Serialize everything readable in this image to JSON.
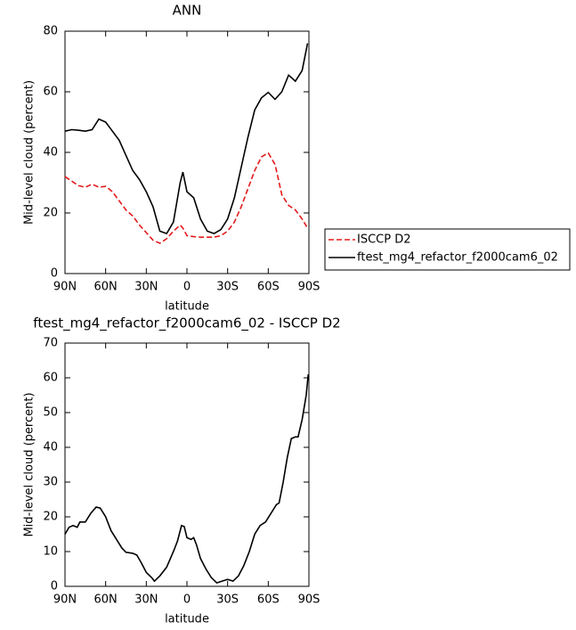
{
  "chart_data": [
    {
      "type": "line",
      "title": "ANN",
      "xlabel": "latitude",
      "ylabel": "Mid-level cloud (percent)",
      "x": [
        90,
        85,
        80,
        75,
        70,
        65,
        60,
        55,
        50,
        45,
        40,
        35,
        30,
        25,
        20,
        15,
        10,
        5,
        3,
        0,
        -5,
        -10,
        -15,
        -20,
        -25,
        -30,
        -35,
        -40,
        -45,
        -50,
        -55,
        -60,
        -65,
        -70,
        -75,
        -80,
        -85,
        -89
      ],
      "series": [
        {
          "name": "ISCCP D2",
          "color": "#e41a1c",
          "dash": true,
          "values": [
            32,
            30.5,
            29,
            28.5,
            29.5,
            28.5,
            28.8,
            27,
            24,
            21,
            19,
            16,
            13.5,
            11,
            10,
            11.5,
            14,
            16,
            15,
            12.5,
            12.2,
            12,
            12,
            12,
            12.5,
            14,
            17,
            22,
            28,
            34,
            38.5,
            39.8,
            36,
            26,
            22.5,
            21,
            18,
            15
          ]
        },
        {
          "name": "ftest_mg4_refactor_f2000cam6_02",
          "color": "#000000",
          "dash": false,
          "values": [
            47,
            47.5,
            47.3,
            47,
            47.5,
            51,
            50,
            47,
            44,
            39,
            34,
            31,
            27,
            22,
            14,
            13.2,
            17,
            30,
            33.5,
            27,
            25,
            18,
            14,
            13.2,
            14.5,
            18,
            25,
            35,
            45,
            54,
            58,
            59.8,
            57.5,
            60,
            65.5,
            63.5,
            67,
            76
          ]
        }
      ],
      "xlim": [
        90,
        -90
      ],
      "xticks": [
        {
          "value": 90,
          "label": "90N"
        },
        {
          "value": 60,
          "label": "60N"
        },
        {
          "value": 30,
          "label": "30N"
        },
        0,
        {
          "value": -30,
          "label": "30S"
        },
        {
          "value": -60,
          "label": "60S"
        },
        {
          "value": -90,
          "label": "90S"
        }
      ],
      "ylim": [
        0,
        80
      ],
      "yticks": [
        0,
        20,
        40,
        60,
        80
      ],
      "legend": "right"
    },
    {
      "type": "line",
      "title": "ftest_mg4_refactor_f2000cam6_02 - ISCCP D2",
      "xlabel": "latitude",
      "ylabel": "Mid-level cloud (percent)",
      "x": [
        90,
        87,
        84,
        81,
        79,
        75,
        71,
        67,
        64,
        60,
        56,
        52,
        48,
        45,
        40,
        37,
        34,
        30,
        26,
        24,
        20,
        15,
        10,
        7,
        4,
        2,
        0,
        -3,
        -5,
        -7,
        -10,
        -14,
        -18,
        -22,
        -26,
        -30,
        -34,
        -38,
        -42,
        -46,
        -50,
        -54,
        -58,
        -62,
        -66,
        -68,
        -71,
        -74,
        -77,
        -80,
        -82,
        -85,
        -88,
        -89.5
      ],
      "series": [
        {
          "name": "ftest_mg4_refactor_f2000cam6_02 - ISCCP D2",
          "color": "#000000",
          "dash": false,
          "values": [
            15,
            17,
            17.5,
            17,
            18.5,
            18.5,
            21,
            22.8,
            22.5,
            20,
            16,
            13.5,
            11,
            9.8,
            9.5,
            9,
            7,
            4,
            2.5,
            1.5,
            3,
            5.5,
            10,
            13,
            17.5,
            17.2,
            14,
            13.5,
            14,
            12,
            8,
            5,
            2.5,
            1,
            1.5,
            2,
            1.5,
            3,
            6,
            10,
            15,
            17.5,
            18.5,
            21,
            23.5,
            24,
            30,
            37,
            42.5,
            43,
            43,
            48,
            55,
            61
          ]
        }
      ],
      "xlim": [
        90,
        -90
      ],
      "xticks": [
        {
          "value": 90,
          "label": "90N"
        },
        {
          "value": 60,
          "label": "60N"
        },
        {
          "value": 30,
          "label": "30N"
        },
        0,
        {
          "value": -30,
          "label": "30S"
        },
        {
          "value": -60,
          "label": "60S"
        },
        {
          "value": -90,
          "label": "90S"
        }
      ],
      "ylim": [
        0,
        70
      ],
      "yticks": [
        0,
        10,
        20,
        30,
        40,
        50,
        60,
        70
      ]
    }
  ]
}
